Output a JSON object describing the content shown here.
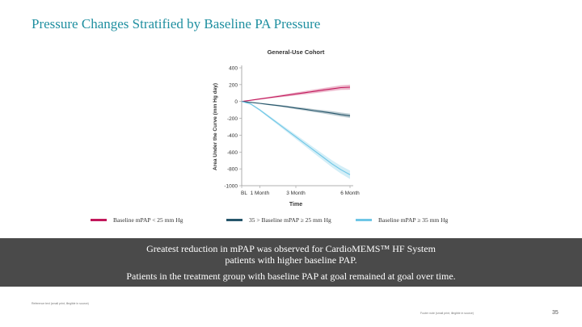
{
  "slide": {
    "title": "Pressure Changes Stratified by Baseline PA Pressure",
    "summary_line1": "Greatest reduction in mPAP was observed for CardioMEMS™ HF System",
    "summary_line2": "patients with higher baseline PAP.",
    "summary_line3": "Patients in the treatment group with baseline PAP at goal remained at goal over time.",
    "reference": "Reference text (small print, illegible in source)",
    "footer_note": "Footer note (small print, illegible in source)",
    "page_number": "35"
  },
  "chart_data": {
    "type": "line",
    "title": "General-Use Cohort",
    "xlabel": "Time",
    "ylabel": "Area Under the Curve (mm Hg day)",
    "xlim": [
      0,
      6
    ],
    "ylim": [
      -1000,
      400
    ],
    "yticks": [
      400,
      200,
      0,
      -200,
      -400,
      -600,
      -800,
      -1000
    ],
    "ytick_labels": [
      "400",
      "200",
      "0",
      "-200",
      "-400",
      "-600",
      "-800",
      "-1000"
    ],
    "xticks": [
      0,
      1,
      3,
      6
    ],
    "xtick_labels": [
      "BL",
      "1 Month",
      "3 Month",
      "6 Month"
    ],
    "grid": false,
    "series": [
      {
        "name": "Baseline mPAP < 25 mm Hg",
        "color": "#c2185b",
        "x": [
          0,
          0.5,
          1,
          1.5,
          2,
          2.5,
          3,
          3.5,
          4,
          4.5,
          5,
          5.5,
          6
        ],
        "values": [
          0,
          15,
          30,
          45,
          60,
          75,
          90,
          105,
          120,
          135,
          150,
          165,
          170
        ],
        "ci_halfwidth": [
          0,
          5,
          8,
          10,
          13,
          15,
          18,
          20,
          22,
          24,
          26,
          28,
          30
        ]
      },
      {
        "name": "35 > Baseline mPAP ≥ 25 mm Hg",
        "color": "#26566b",
        "x": [
          0,
          0.5,
          1,
          1.5,
          2,
          2.5,
          3,
          3.5,
          4,
          4.5,
          5,
          5.5,
          6
        ],
        "values": [
          0,
          -10,
          -22,
          -35,
          -48,
          -62,
          -78,
          -92,
          -108,
          -122,
          -138,
          -155,
          -170
        ],
        "ci_halfwidth": [
          0,
          4,
          6,
          8,
          10,
          12,
          14,
          16,
          18,
          20,
          22,
          24,
          25
        ]
      },
      {
        "name": "Baseline mPAP ≥ 35 mm Hg",
        "color": "#6ec6e6",
        "x": [
          0,
          0.5,
          1,
          1.5,
          2,
          2.5,
          3,
          3.5,
          4,
          4.5,
          5,
          5.5,
          6
        ],
        "values": [
          0,
          -30,
          -100,
          -180,
          -260,
          -340,
          -420,
          -500,
          -580,
          -660,
          -740,
          -810,
          -870
        ],
        "ci_halfwidth": [
          0,
          8,
          12,
          15,
          18,
          22,
          26,
          30,
          34,
          38,
          42,
          46,
          50
        ]
      }
    ]
  }
}
